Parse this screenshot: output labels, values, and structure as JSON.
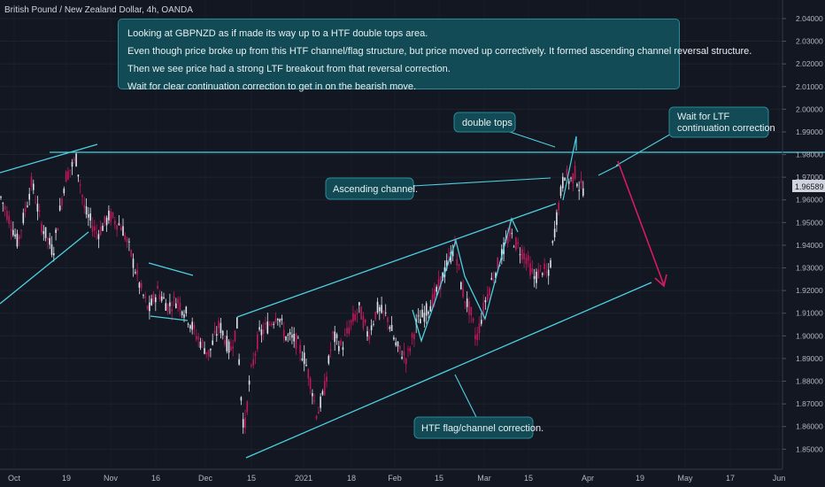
{
  "header": {
    "symbol": "British Pound / New Zealand Dollar, 4h, OANDA"
  },
  "annotations": {
    "main_lines": [
      "Looking at GBPNZD as if made its way up to a HTF double tops area.",
      "Even though price broke up from this HTF channel/flag structure, but price moved up correctively. It formed ascending channel reversal structure.",
      "Then we see price had a strong LTF breakout from that reversal correction.",
      "Wait for clear continuation correction to get in on the bearish move."
    ],
    "double_tops": "double tops",
    "wait_for_ltf": "Wait for LTF continuation correction",
    "ascending_channel": "Ascending channel.",
    "htf_flag": "HTF flag/channel correction."
  },
  "colors": {
    "background": "#131722",
    "line": "#4dd0e1",
    "bull": "#e0e3eb",
    "bear": "#c2185b",
    "arrow": "#d81b60",
    "callout": "#124a55"
  },
  "chart_data": {
    "type": "candlestick",
    "title": "British Pound / New Zealand Dollar, 4h, OANDA",
    "x_ticks": [
      "Oct",
      "19",
      "Nov",
      "16",
      "Dec",
      "15",
      "2021",
      "18",
      "Feb",
      "15",
      "Mar",
      "15",
      "Apr",
      "19",
      "May",
      "17",
      "Jun"
    ],
    "y_ticks": [
      "2.04000",
      "2.03000",
      "2.02000",
      "2.01000",
      "2.00000",
      "1.99000",
      "1.98000",
      "1.97000",
      "1.96000",
      "1.95000",
      "1.94000",
      "1.93000",
      "1.92000",
      "1.91000",
      "1.90000",
      "1.89000",
      "1.88000",
      "1.87000",
      "1.86000",
      "1.85000"
    ],
    "ylim": [
      1.847,
      2.0435
    ],
    "current_price": "1.96589",
    "resistance_level": 1.9795,
    "price_path": [
      [
        0,
        1.962
      ],
      [
        14,
        1.948
      ],
      [
        20,
        1.941
      ],
      [
        36,
        1.968
      ],
      [
        46,
        1.95
      ],
      [
        60,
        1.937
      ],
      [
        74,
        1.97
      ],
      [
        86,
        1.978
      ],
      [
        96,
        1.955
      ],
      [
        110,
        1.945
      ],
      [
        124,
        1.953
      ],
      [
        138,
        1.948
      ],
      [
        148,
        1.936
      ],
      [
        158,
        1.922
      ],
      [
        168,
        1.911
      ],
      [
        178,
        1.92
      ],
      [
        190,
        1.913
      ],
      [
        200,
        1.916
      ],
      [
        210,
        1.91
      ],
      [
        222,
        1.9
      ],
      [
        236,
        1.892
      ],
      [
        248,
        1.905
      ],
      [
        260,
        1.893
      ],
      [
        268,
        1.905
      ],
      [
        272,
        1.875
      ],
      [
        276,
        1.857
      ],
      [
        282,
        1.88
      ],
      [
        292,
        1.9
      ],
      [
        304,
        1.905
      ],
      [
        314,
        1.91
      ],
      [
        322,
        1.9
      ],
      [
        334,
        1.898
      ],
      [
        344,
        1.89
      ],
      [
        352,
        1.878
      ],
      [
        358,
        1.865
      ],
      [
        366,
        1.875
      ],
      [
        376,
        1.9
      ],
      [
        386,
        1.895
      ],
      [
        396,
        1.905
      ],
      [
        406,
        1.912
      ],
      [
        416,
        1.9
      ],
      [
        426,
        1.912
      ],
      [
        438,
        1.908
      ],
      [
        448,
        1.895
      ],
      [
        460,
        1.89
      ],
      [
        470,
        1.905
      ],
      [
        480,
        1.91
      ],
      [
        492,
        1.918
      ],
      [
        504,
        1.93
      ],
      [
        514,
        1.94
      ],
      [
        522,
        1.92
      ],
      [
        532,
        1.91
      ],
      [
        538,
        1.898
      ],
      [
        548,
        1.915
      ],
      [
        556,
        1.925
      ],
      [
        566,
        1.935
      ],
      [
        576,
        1.945
      ],
      [
        584,
        1.94
      ],
      [
        594,
        1.935
      ],
      [
        604,
        1.925
      ],
      [
        612,
        1.93
      ],
      [
        620,
        1.926
      ],
      [
        626,
        1.945
      ],
      [
        632,
        1.96
      ],
      [
        638,
        1.972
      ],
      [
        644,
        1.968
      ],
      [
        650,
        1.972
      ],
      [
        654,
        1.966
      ],
      [
        660,
        1.965
      ]
    ]
  }
}
